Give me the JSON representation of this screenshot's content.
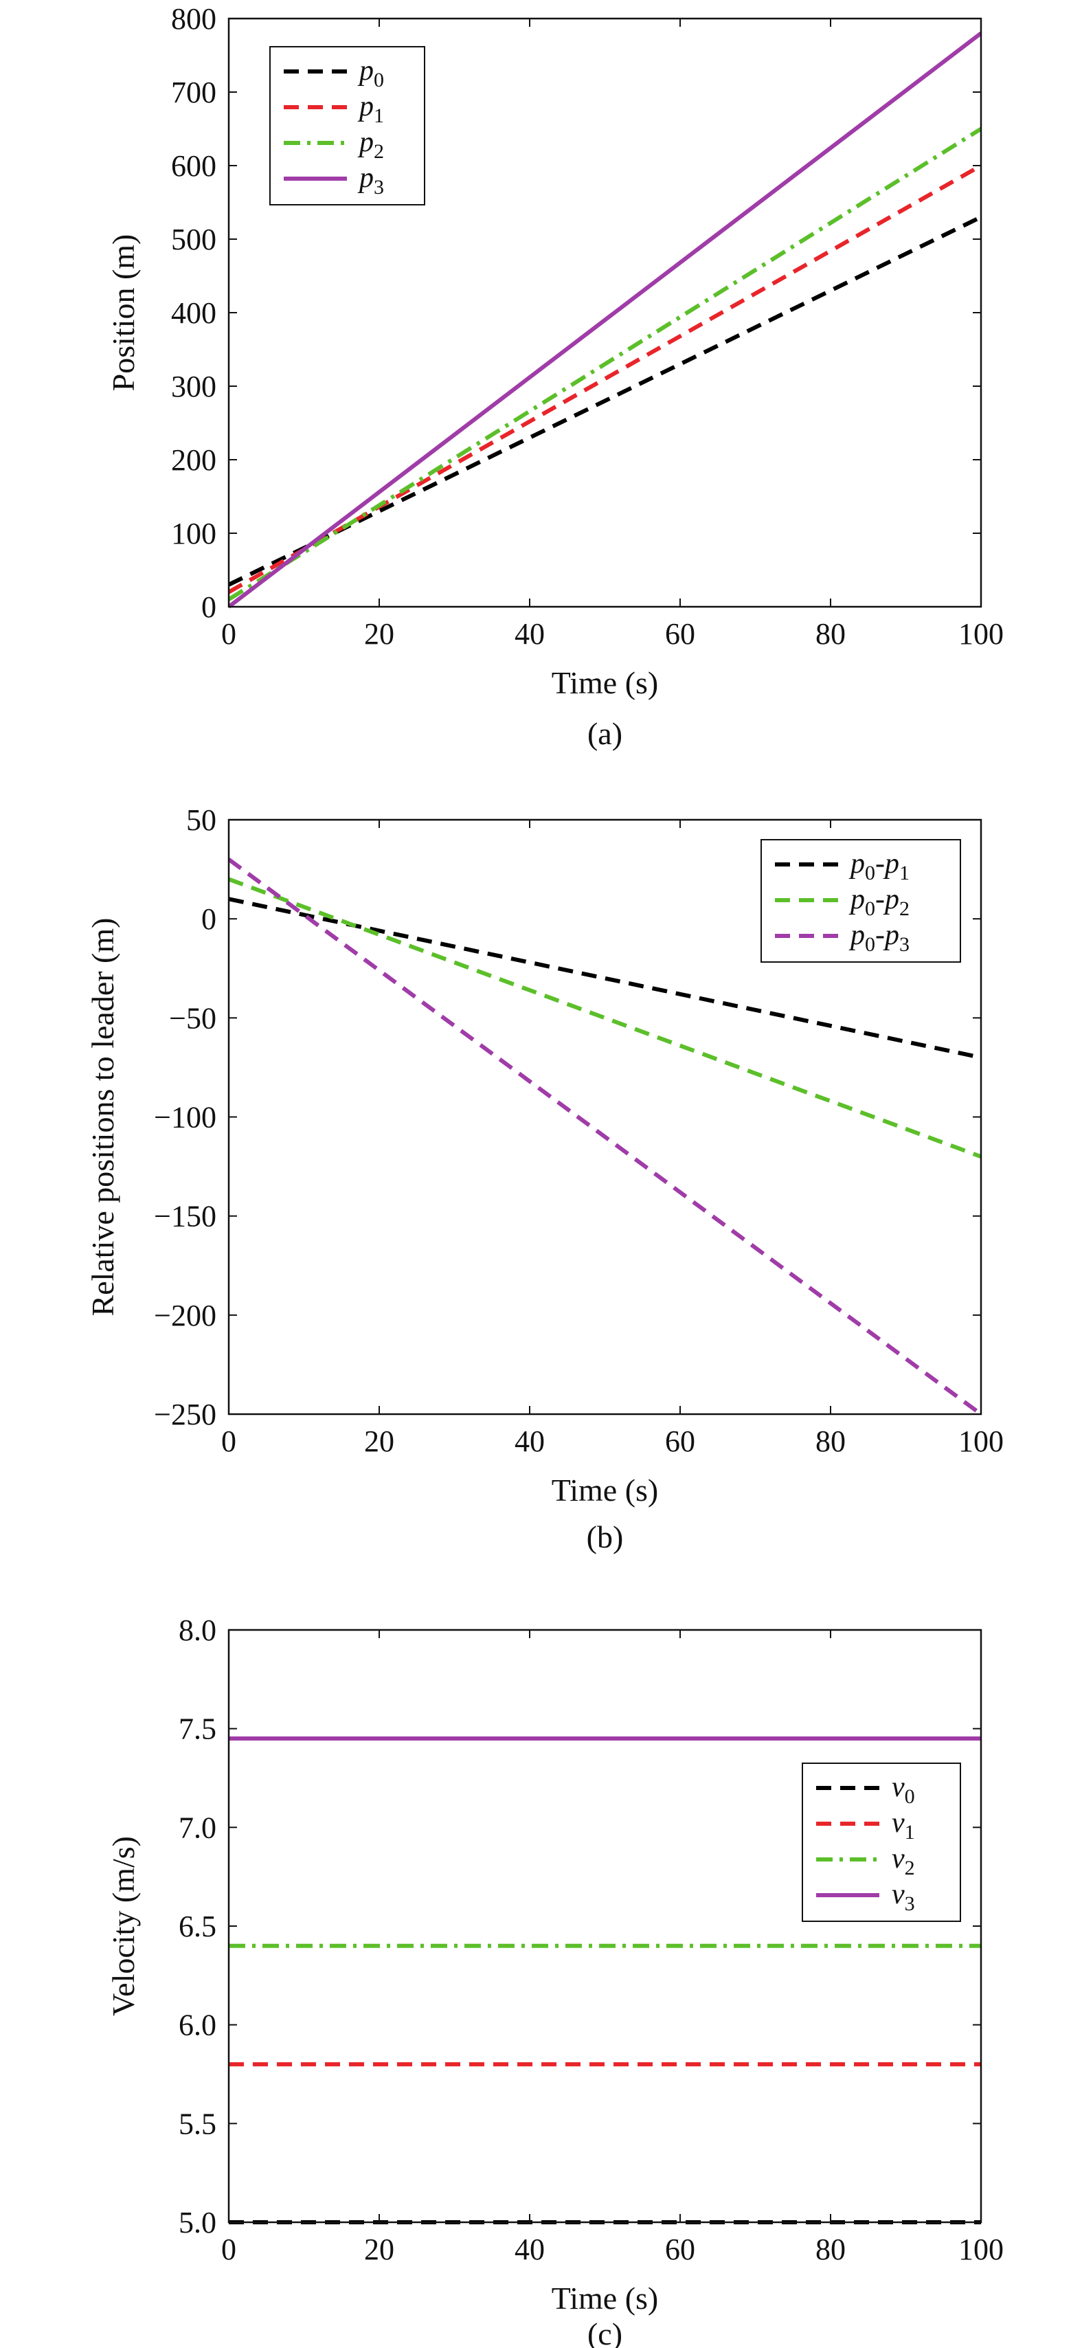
{
  "chart_data": [
    {
      "type": "line",
      "caption": "(a)",
      "xlabel": "Time (s)",
      "ylabel": "Position (m)",
      "xlim": [
        0,
        100
      ],
      "ylim": [
        0,
        800
      ],
      "xticks": [
        0,
        20,
        40,
        60,
        80,
        100
      ],
      "yticks": [
        0,
        100,
        200,
        300,
        400,
        500,
        600,
        700,
        800
      ],
      "x": [
        0,
        100
      ],
      "legend_position": "top-left",
      "grid": false,
      "series": [
        {
          "name": "p0",
          "base": "p",
          "sub": "0",
          "values": [
            30,
            530
          ],
          "color": "#000000",
          "dash": "dashed"
        },
        {
          "name": "p1",
          "base": "p",
          "sub": "1",
          "values": [
            20,
            600
          ],
          "color": "#e8252a",
          "dash": "dashed"
        },
        {
          "name": "p2",
          "base": "p",
          "sub": "2",
          "values": [
            10,
            650
          ],
          "color": "#5cbf2a",
          "dash": "dashdot"
        },
        {
          "name": "p3",
          "base": "p",
          "sub": "3",
          "values": [
            0,
            780
          ],
          "color": "#a03ca8",
          "dash": "solid"
        }
      ]
    },
    {
      "type": "line",
      "caption": "(b)",
      "xlabel": "Time (s)",
      "ylabel": "Relative positions to leader (m)",
      "xlim": [
        0,
        100
      ],
      "ylim": [
        -250,
        50
      ],
      "xticks": [
        0,
        20,
        40,
        60,
        80,
        100
      ],
      "yticks": [
        -250,
        -200,
        -150,
        -100,
        -50,
        0,
        50
      ],
      "ytick_labels": [
        "−250",
        "−200",
        "−150",
        "−100",
        "−50",
        "0",
        "50"
      ],
      "x": [
        0,
        100
      ],
      "legend_position": "top-right",
      "grid": false,
      "series": [
        {
          "name": "p0-p1",
          "base": "p",
          "sub": "0",
          "base2": "p",
          "sub2": "1",
          "values": [
            10,
            -70
          ],
          "color": "#000000",
          "dash": "dashed"
        },
        {
          "name": "p0-p2",
          "base": "p",
          "sub": "0",
          "base2": "p",
          "sub2": "2",
          "values": [
            20,
            -120
          ],
          "color": "#5cbf2a",
          "dash": "dashed"
        },
        {
          "name": "p0-p3",
          "base": "p",
          "sub": "0",
          "base2": "p",
          "sub2": "3",
          "values": [
            30,
            -250
          ],
          "color": "#a03ca8",
          "dash": "dashed"
        }
      ]
    },
    {
      "type": "line",
      "caption": "(c)",
      "xlabel": "Time (s)",
      "ylabel": "Velocity (m/s)",
      "xlim": [
        0,
        100
      ],
      "ylim": [
        5.0,
        8.0
      ],
      "xticks": [
        0,
        20,
        40,
        60,
        80,
        100
      ],
      "yticks": [
        5.0,
        5.5,
        6.0,
        6.5,
        7.0,
        7.5,
        8.0
      ],
      "ytick_labels": [
        "5.0",
        "5.5",
        "6.0",
        "6.5",
        "7.0",
        "7.5",
        "8.0"
      ],
      "x": [
        0,
        100
      ],
      "legend_position": "right",
      "grid": false,
      "series": [
        {
          "name": "v0",
          "base": "v",
          "sub": "0",
          "values": [
            5.0,
            5.0
          ],
          "color": "#000000",
          "dash": "dashed"
        },
        {
          "name": "v1",
          "base": "v",
          "sub": "1",
          "values": [
            5.8,
            5.8
          ],
          "color": "#e8252a",
          "dash": "dashed"
        },
        {
          "name": "v2",
          "base": "v",
          "sub": "2",
          "values": [
            6.4,
            6.4
          ],
          "color": "#5cbf2a",
          "dash": "dashdot"
        },
        {
          "name": "v3",
          "base": "v",
          "sub": "3",
          "values": [
            7.45,
            7.45
          ],
          "color": "#a03ca8",
          "dash": "solid"
        }
      ]
    }
  ]
}
